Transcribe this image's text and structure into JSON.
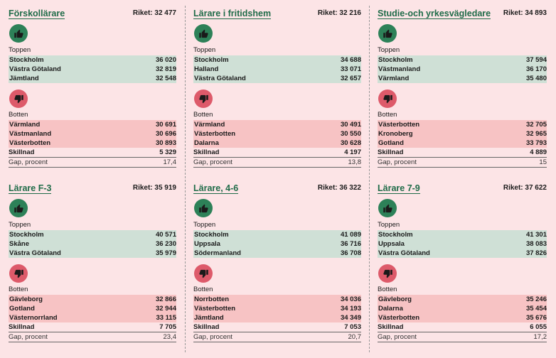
{
  "cards": [
    {
      "title": "Förskollärare",
      "riket": "Riket: 32 477",
      "top_label": "Toppen",
      "bottom_label": "Botten",
      "top": [
        {
          "name": "Stockholm",
          "value": "36 020"
        },
        {
          "name": "Västra Götaland",
          "value": "32 819"
        },
        {
          "name": "Jämtland",
          "value": "32 548"
        }
      ],
      "bottom": [
        {
          "name": "Värmland",
          "value": "30 691"
        },
        {
          "name": "Västmanland",
          "value": "30 696"
        },
        {
          "name": "Västerbotten",
          "value": "30 893"
        }
      ],
      "skillnad_label": "Skillnad",
      "skillnad": "5 329",
      "gap_label": "Gap, procent",
      "gap": "17,4"
    },
    {
      "title": "Lärare i fritidshem",
      "riket": "Riket: 32 216",
      "top_label": "Toppen",
      "bottom_label": "Botten",
      "top": [
        {
          "name": "Stockholm",
          "value": "34 688"
        },
        {
          "name": "Halland",
          "value": "33 071"
        },
        {
          "name": "Västra Götaland",
          "value": "32 657"
        }
      ],
      "bottom": [
        {
          "name": "Värmland",
          "value": "30 491"
        },
        {
          "name": "Västerbotten",
          "value": "30 550"
        },
        {
          "name": "Dalarna",
          "value": "30 628"
        }
      ],
      "skillnad_label": "Skillnad",
      "skillnad": "4 197",
      "gap_label": "Gap, procent",
      "gap": "13,8"
    },
    {
      "title": "Studie-och yrkesvägledare",
      "riket": "Riket: 34 893",
      "top_label": "Toppen",
      "bottom_label": "Botten",
      "top": [
        {
          "name": "Stockholm",
          "value": "37 594"
        },
        {
          "name": "Västmanland",
          "value": "36 170"
        },
        {
          "name": "Värmland",
          "value": "35 480"
        }
      ],
      "bottom": [
        {
          "name": "Västerbotten",
          "value": "32 705"
        },
        {
          "name": "Kronoberg",
          "value": "32 965"
        },
        {
          "name": "Gotland",
          "value": "33 793"
        }
      ],
      "skillnad_label": "Skillnad",
      "skillnad": "4 889",
      "gap_label": "Gap, procent",
      "gap": "15"
    },
    {
      "title": "Lärare F-3",
      "riket": "Riket: 35 919",
      "top_label": "Toppen",
      "bottom_label": "Botten",
      "top": [
        {
          "name": "Stockholm",
          "value": "40 571"
        },
        {
          "name": "Skåne",
          "value": "36 230"
        },
        {
          "name": "Västra Götaland",
          "value": "35 979"
        }
      ],
      "bottom": [
        {
          "name": "Gävleborg",
          "value": "32 866"
        },
        {
          "name": "Gotland",
          "value": "32 944"
        },
        {
          "name": "Västernorrland",
          "value": "33 115"
        }
      ],
      "skillnad_label": "Skillnad",
      "skillnad": "7 705",
      "gap_label": "Gap, procent",
      "gap": "23,4"
    },
    {
      "title": "Lärare, 4-6",
      "riket": "Riket: 36 322",
      "top_label": "Toppen",
      "bottom_label": "Botten",
      "top": [
        {
          "name": "Stockholm",
          "value": "41 089"
        },
        {
          "name": "Uppsala",
          "value": "36 716"
        },
        {
          "name": "Södermanland",
          "value": "36 708"
        }
      ],
      "bottom": [
        {
          "name": "Norrbotten",
          "value": "34 036"
        },
        {
          "name": "Västerbotten",
          "value": "34 193"
        },
        {
          "name": "Jämtland",
          "value": "34 349"
        }
      ],
      "skillnad_label": "Skillnad",
      "skillnad": "7 053",
      "gap_label": "Gap, procent",
      "gap": "20,7"
    },
    {
      "title": "Lärare 7-9",
      "riket": "Riket: 37 622",
      "top_label": "Toppen",
      "bottom_label": "Botten",
      "top": [
        {
          "name": "Stockholm",
          "value": "41 301"
        },
        {
          "name": "Uppsala",
          "value": "38 083"
        },
        {
          "name": "Västra Götaland",
          "value": "37 826"
        }
      ],
      "bottom": [
        {
          "name": "Gävleborg",
          "value": "35 246"
        },
        {
          "name": "Dalarna",
          "value": "35 454"
        },
        {
          "name": "Västerbotten",
          "value": "35 676"
        }
      ],
      "skillnad_label": "Skillnad",
      "skillnad": "6 055",
      "gap_label": "Gap, procent",
      "gap": "17,2"
    }
  ],
  "icons": {
    "top": "thumbs-up-icon",
    "bottom": "thumbs-down-icon"
  },
  "colors": {
    "title": "#1f6b48",
    "top_bg": "#cfe0d6",
    "bottom_bg": "#f7c3c4",
    "up_icon": "#2d8158",
    "down_icon": "#dd5a6a",
    "page_bg": "#fce4e6"
  }
}
